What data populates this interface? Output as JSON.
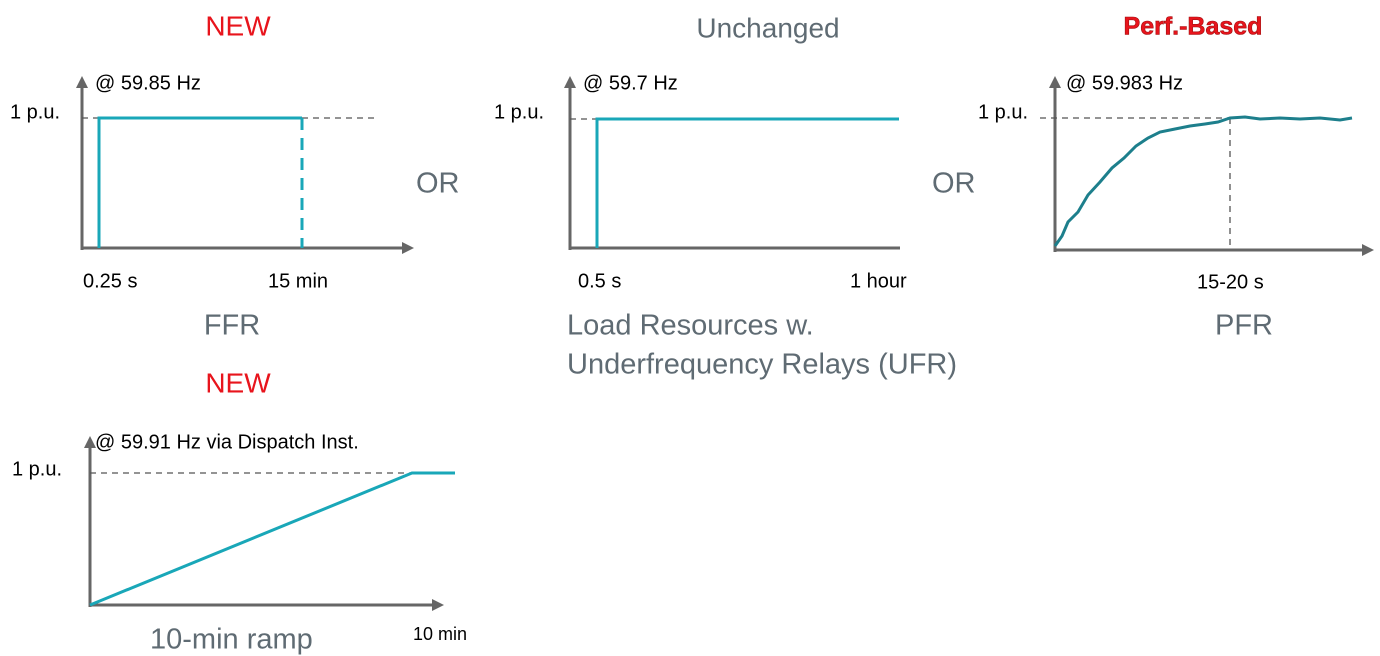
{
  "panels": [
    {
      "header": "NEW",
      "trigger": "@ 59.85 Hz",
      "y_label": "1 p.u.",
      "x_labels": [
        "0.25 s",
        "15 min"
      ],
      "name": [
        "FFR"
      ]
    },
    {
      "header": "Unchanged",
      "trigger": "@ 59.7 Hz",
      "y_label": "1 p.u.",
      "x_labels": [
        "0.5 s",
        "1 hour"
      ],
      "name": [
        "Load Resources w.",
        "Underfrequency Relays (UFR)"
      ]
    },
    {
      "header": "Perf.-Based",
      "trigger": "@ 59.983 Hz",
      "y_label": "1 p.u.",
      "x_labels": [
        "15-20 s"
      ],
      "name": [
        "PFR"
      ]
    },
    {
      "header": "NEW",
      "trigger": "@ 59.91 Hz via Dispatch Inst.",
      "y_label": "1 p.u.",
      "x_labels": [
        "10 min"
      ],
      "name": [
        "10-min ramp"
      ]
    }
  ],
  "separators": [
    "OR",
    "OR"
  ]
}
